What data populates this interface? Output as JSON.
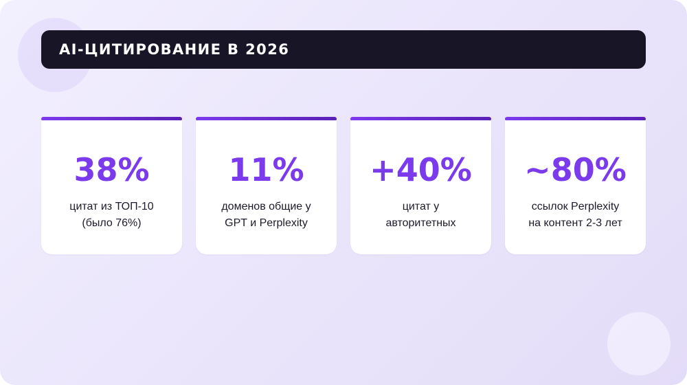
{
  "title": "AI-ЦИТИРОВАНИЕ В 2026",
  "colors": {
    "accent": "#7c3aed",
    "accent_dark": "#5b21b6",
    "title_bar": "#181526",
    "text_dark": "#1c1a2b"
  },
  "stats": [
    {
      "value": "38%",
      "line1": "цитат из ТОП-10",
      "line2": "(было 76%)"
    },
    {
      "value": "11%",
      "line1": "доменов общие у",
      "line2": "GPT и Perplexity"
    },
    {
      "value": "+40%",
      "line1": "цитат у",
      "line2": "авторитетных"
    },
    {
      "value": "~80%",
      "line1": "ссылок Perplexity",
      "line2": "на контент 2-3 лет"
    }
  ]
}
